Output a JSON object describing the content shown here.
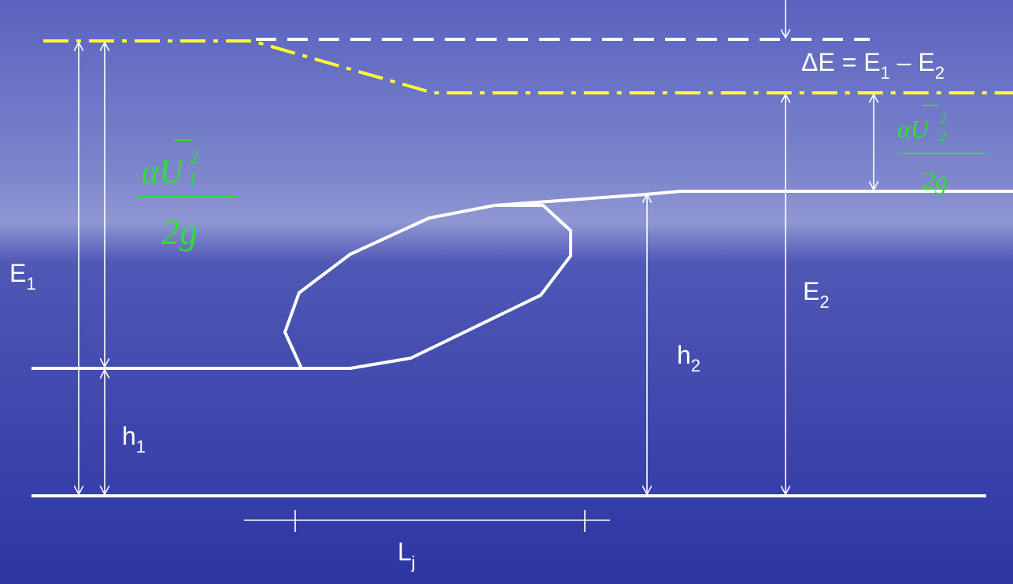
{
  "labels": {
    "e1": {
      "text": "E",
      "sub": "1"
    },
    "e2": {
      "text": "E",
      "sub": "2"
    },
    "h1": {
      "text": "h",
      "sub": "1"
    },
    "h2": {
      "text": "h",
      "sub": "2"
    },
    "lj": {
      "text": "L",
      "sub": "j"
    },
    "delta_e": {
      "segments": [
        {
          "text": "ΔE = E",
          "sub": "1"
        },
        {
          "text": " – E",
          "sub": "2"
        }
      ]
    },
    "head1": {
      "numerator": "αU",
      "sup": "2",
      "sub": "1",
      "denominator": "2g"
    },
    "head2": {
      "numerator": "αU",
      "sup": "2",
      "sub": "2",
      "denominator": "2g"
    }
  }
}
